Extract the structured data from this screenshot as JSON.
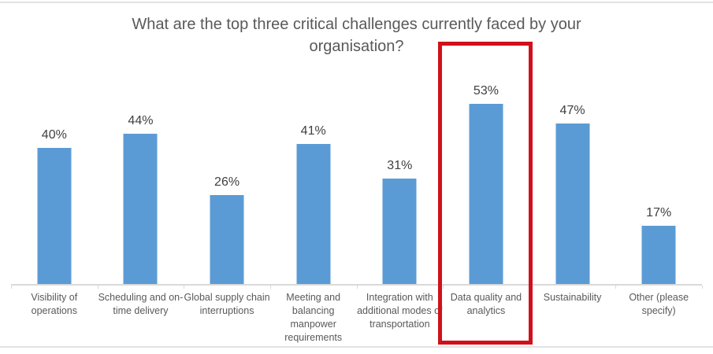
{
  "chart_data": {
    "type": "bar",
    "title": "What are the top three critical challenges currently faced by your organisation?",
    "categories": [
      "Visibility of operations",
      "Scheduling and on-time delivery",
      "Global supply chain interruptions",
      "Meeting and balancing manpower requirements",
      "Integration with additional modes of transportation",
      "Data quality and analytics",
      "Sustainability",
      "Other (please specify)"
    ],
    "values": [
      40,
      44,
      26,
      41,
      31,
      53,
      47,
      17
    ],
    "value_labels": [
      "40%",
      "44%",
      "26%",
      "41%",
      "31%",
      "53%",
      "47%",
      "17%"
    ],
    "xlabel": "",
    "ylabel": "",
    "ylim": [
      0,
      60
    ],
    "grid": false,
    "legend": "none",
    "data_labels": "above-bars",
    "highlight": {
      "index": 5,
      "category": "Data quality and analytics",
      "style": "red-rectangle-outline"
    }
  },
  "colors": {
    "bar": "#5b9bd5",
    "highlight_box": "#d0111b",
    "axis_line": "#d9d9d9",
    "title_text": "#595959",
    "value_label_text": "#404040",
    "category_label_text": "#595959",
    "figure_border": "#e3e3e3"
  }
}
